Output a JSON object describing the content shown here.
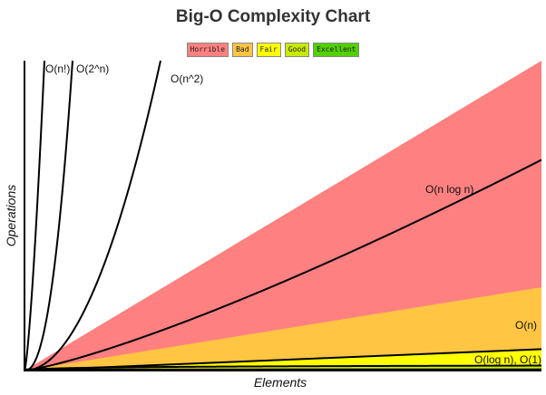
{
  "chart_data": {
    "type": "line",
    "title": "Big-O Complexity Chart",
    "xlabel": "Elements",
    "ylabel": "Operations",
    "xlim": [
      0,
      100
    ],
    "ylim": [
      0,
      100
    ],
    "legend_placement": "top-center",
    "legend": [
      {
        "name": "Horrible",
        "color": "#ff8080"
      },
      {
        "name": "Bad",
        "color": "#ffc543"
      },
      {
        "name": "Fair",
        "color": "#ffff00"
      },
      {
        "name": "Good",
        "color": "#c8ea00"
      },
      {
        "name": "Excellent",
        "color": "#53d000"
      }
    ],
    "regions": [
      {
        "name": "Horrible",
        "color": "#ff8080"
      },
      {
        "name": "Bad",
        "color": "#ffc543"
      },
      {
        "name": "Fair",
        "color": "#ffff00"
      },
      {
        "name": "Good",
        "color": "#c8ea00"
      },
      {
        "name": "Excellent",
        "color": "#53d000"
      }
    ],
    "series": [
      {
        "name": "O(n!)",
        "label": "O(n!)"
      },
      {
        "name": "O(2^n)",
        "label": "O(2^n)"
      },
      {
        "name": "O(n^2)",
        "label": "O(n^2)"
      },
      {
        "name": "O(n log n)",
        "label": "O(n log n)"
      },
      {
        "name": "O(n)",
        "label": "O(n)"
      },
      {
        "name": "O(log n)",
        "label": "O(log n), O(1)"
      },
      {
        "name": "O(1)",
        "label": ""
      }
    ]
  }
}
